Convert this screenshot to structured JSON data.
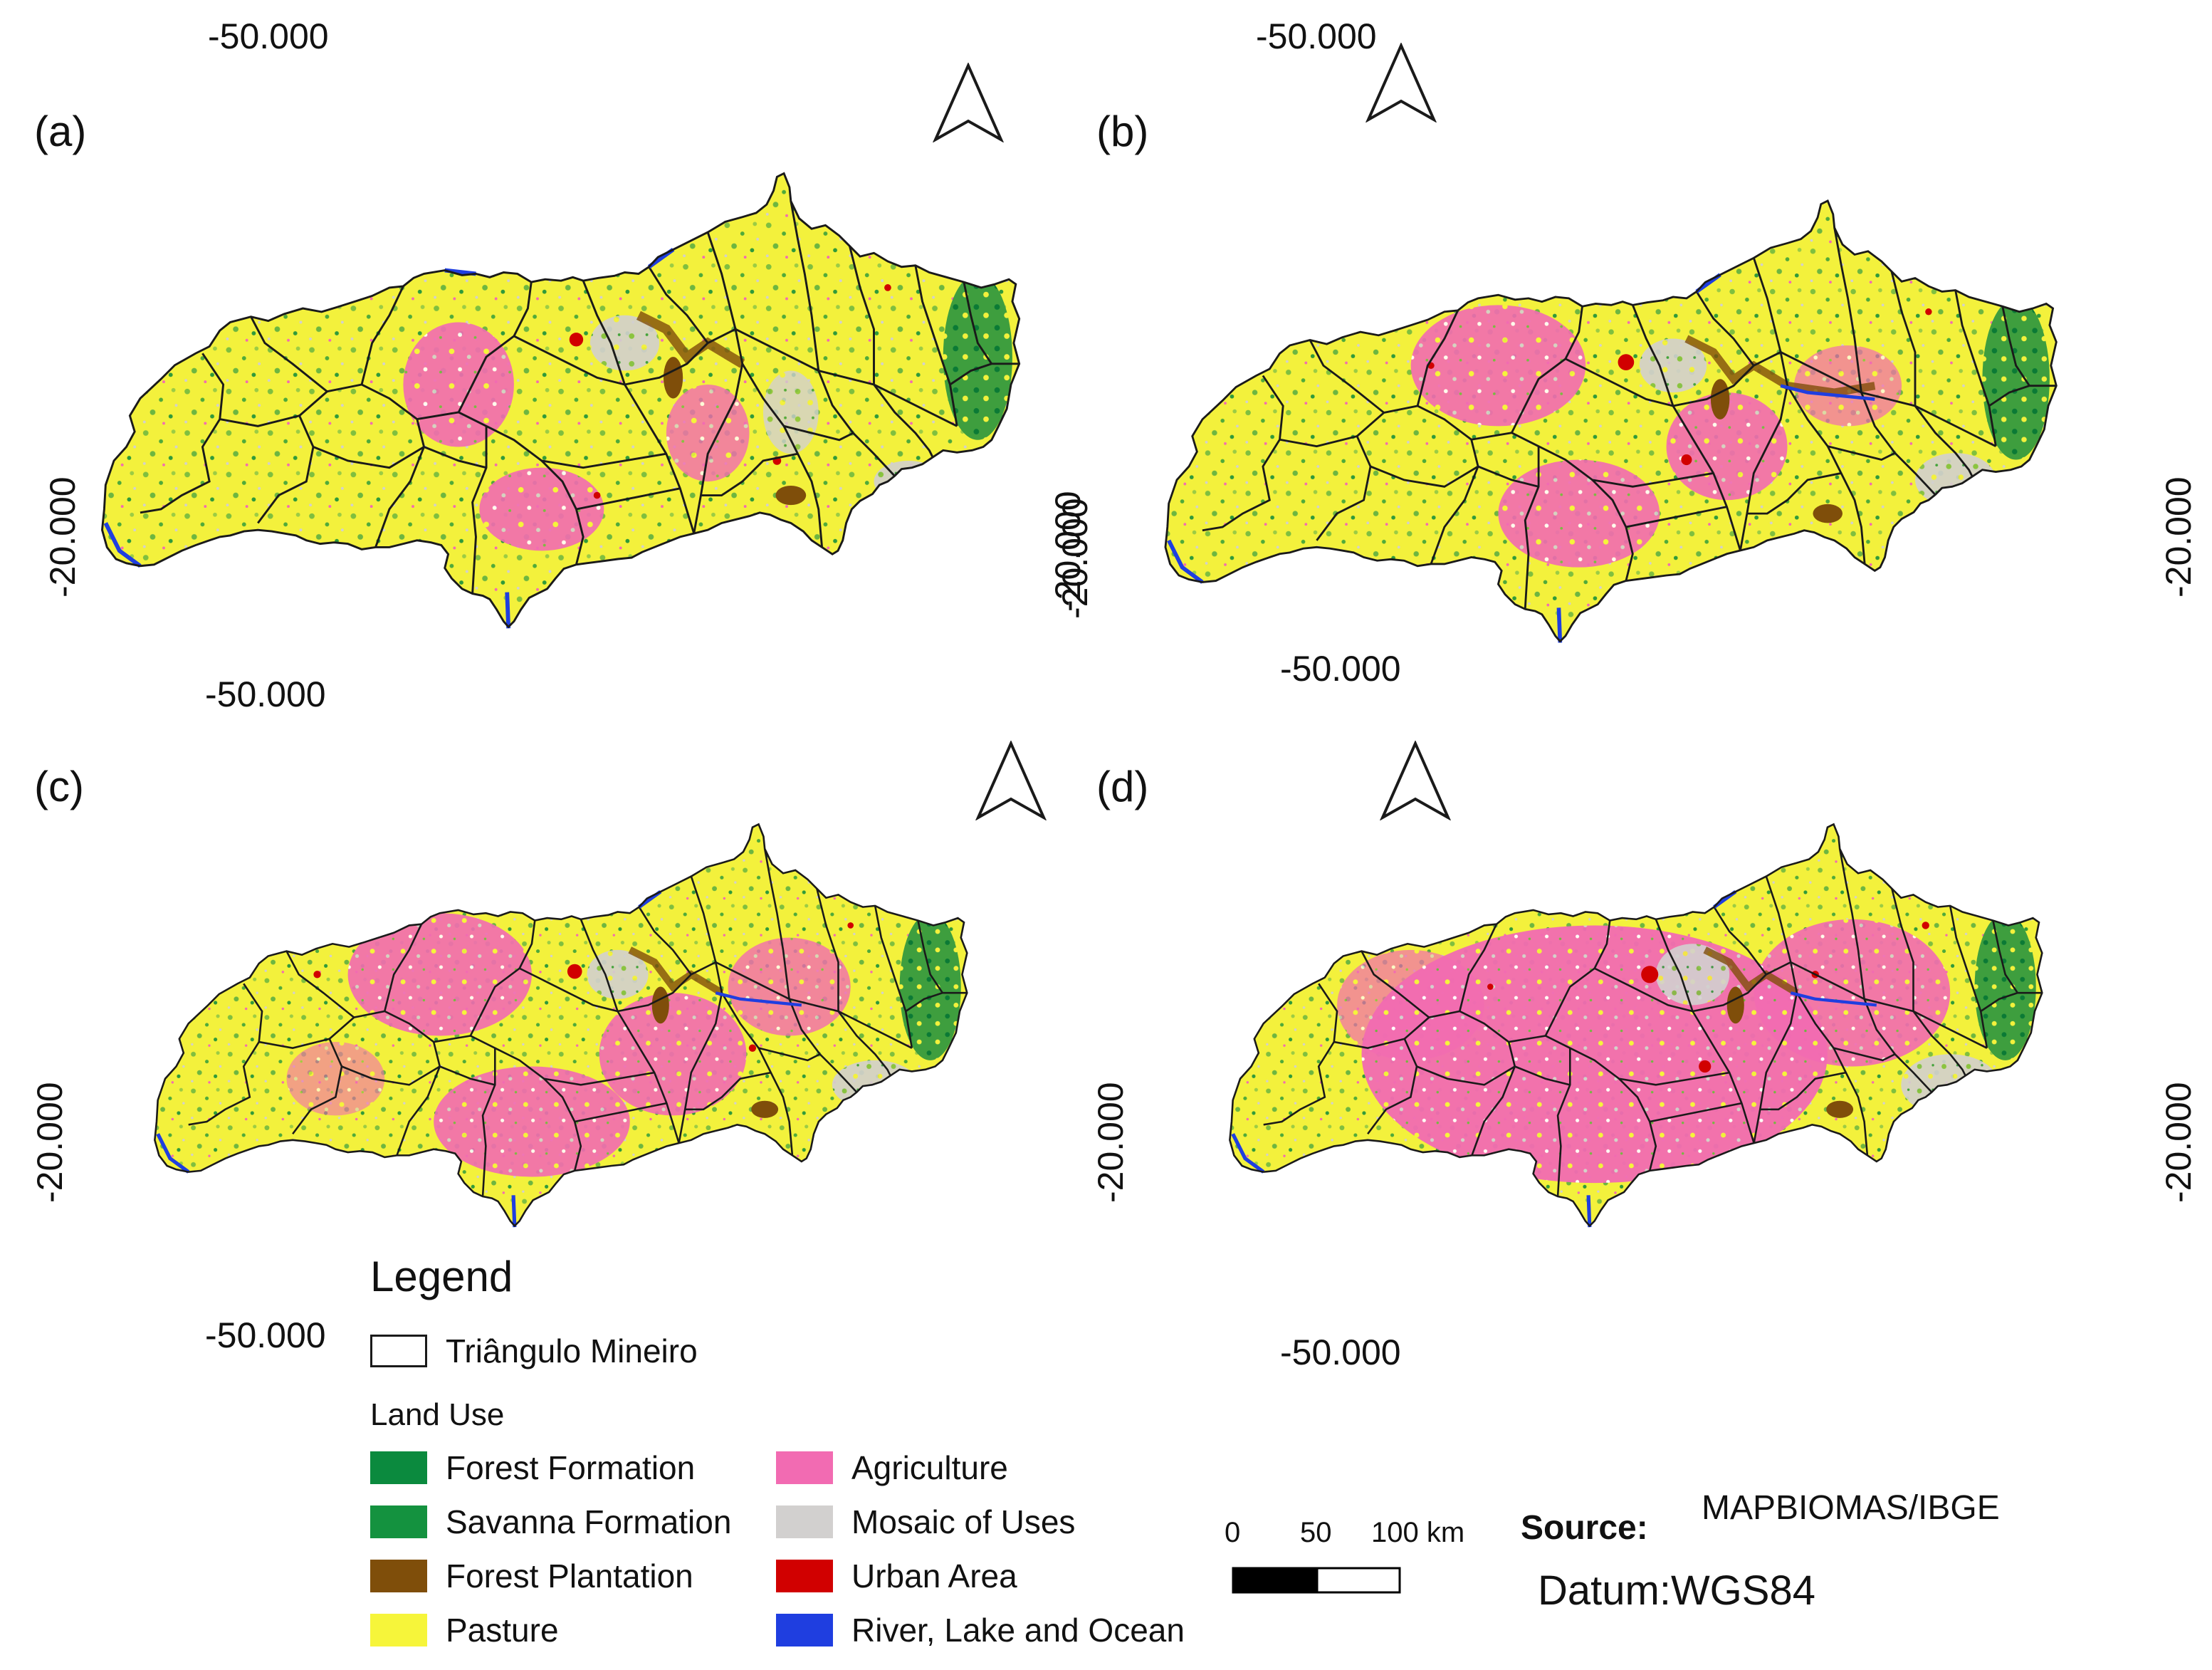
{
  "panels": [
    {
      "label": "(a)",
      "top_lon": "-50.000",
      "left_lat": "-20.000",
      "right_lat": "-20.000",
      "bottom_lon": "-50.000"
    },
    {
      "label": "(b)",
      "top_lon": "-50.000",
      "left_lat": "-20.000",
      "right_lat": "-20.000",
      "bottom_lon": "-50.000"
    },
    {
      "label": "(c)",
      "top_lon": "-50.000",
      "left_lat": "-20.000",
      "right_lat": "-20.000",
      "bottom_lon": "-50.000"
    },
    {
      "label": "(d)",
      "top_lon": "-50.000",
      "left_lat": "-20.000",
      "right_lat": "-20.000",
      "bottom_lon": "-50.000"
    }
  ],
  "legend": {
    "title": "Legend",
    "boundary_label": "Triângulo Mineiro",
    "land_use_title": "Land Use",
    "items": [
      {
        "label": "Forest Formation",
        "color": "#0b8a3e"
      },
      {
        "label": "Savanna Formation",
        "color": "#14923f"
      },
      {
        "label": "Forest Plantation",
        "color": "#7f4e0a"
      },
      {
        "label": "Pasture",
        "color": "#f6f53a"
      },
      {
        "label": "Agriculture",
        "color": "#f26bb2"
      },
      {
        "label": "Mosaic of Uses",
        "color": "#d2d0cf"
      },
      {
        "label": "Urban Area",
        "color": "#d10000"
      },
      {
        "label": "River, Lake and Ocean",
        "color": "#1f3ee0"
      }
    ]
  },
  "scale": {
    "ticks": [
      "0",
      "50",
      "100 km"
    ]
  },
  "source": {
    "label": "Source:",
    "value": "MAPBIOMAS/IBGE"
  },
  "datum": "Datum:WGS84"
}
